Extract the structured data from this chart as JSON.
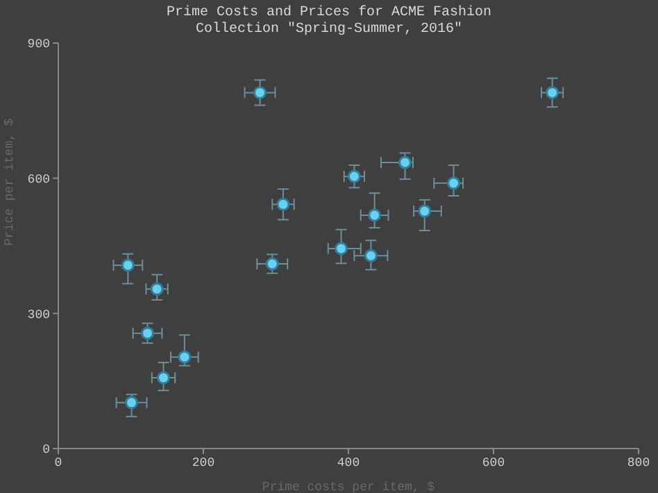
{
  "chart_data": {
    "type": "scatter",
    "title": "Prime Costs and Prices for ACME Fashion\nCollection \"Spring-Summer, 2016\"",
    "xlabel": "Prime costs per item, $",
    "ylabel": "Price per item, $",
    "xlim": [
      0,
      800
    ],
    "xticks": [
      0,
      200,
      400,
      600,
      800
    ],
    "ylim": [
      0,
      900
    ],
    "yticks": [
      0,
      300,
      600,
      900
    ],
    "grid": false,
    "legend": false,
    "marker": "circle",
    "series": [
      {
        "color": "#6ccfee",
        "x": [
          278,
          681,
          408,
          478,
          545,
          310,
          436,
          505,
          390,
          431,
          295,
          96,
          136,
          123,
          174,
          145,
          101
        ],
        "values": [
          790,
          790,
          604,
          635,
          589,
          542,
          518,
          527,
          444,
          428,
          410,
          407,
          354,
          256,
          203,
          157,
          102
        ],
        "xerrors": [
          21,
          15,
          14,
          [
            445,
            489
          ],
          [
            518,
            558
          ],
          15,
          19,
          [
            490,
            528
          ],
          [
            372,
            417
          ],
          23,
          21,
          20,
          15,
          20,
          19,
          16,
          21
        ],
        "errors": [
          28,
          32,
          25,
          [
            598,
            656
          ],
          [
            561,
            629
          ],
          34,
          [
            490,
            567
          ],
          [
            484,
            552
          ],
          [
            411,
            486
          ],
          [
            397,
            462
          ],
          21,
          [
            366,
            432
          ],
          [
            330,
            386
          ],
          22,
          [
            184,
            252
          ],
          [
            129,
            191
          ],
          [
            71,
            120
          ]
        ]
      }
    ]
  }
}
